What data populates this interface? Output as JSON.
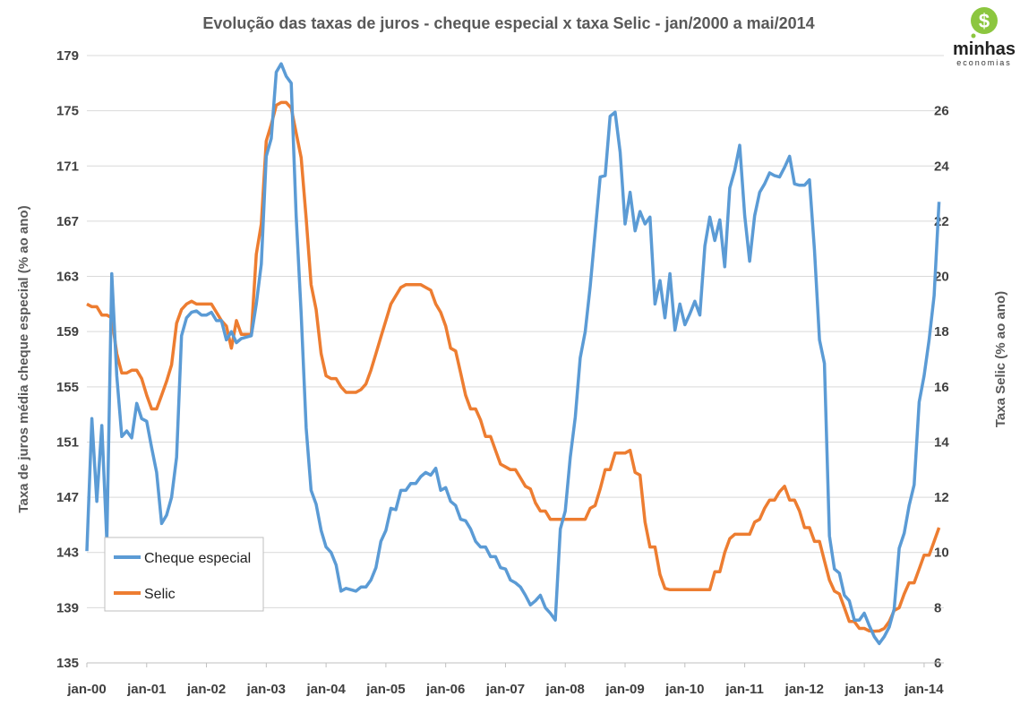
{
  "logo": {
    "line1": "minhas",
    "line2": "economias",
    "symbol": "$"
  },
  "chart_data": {
    "type": "line",
    "title": "Evolução das taxas de juros - cheque especial x taxa Selic - jan/2000 a mai/2014",
    "ylabel": "Taxa de juros média cheque especial (% ao ano)",
    "y2label": "Taxa Selic (% ao ano)",
    "x_unit": "months since jan-00",
    "xticks": [
      {
        "month": 0,
        "label": "jan-00"
      },
      {
        "month": 12,
        "label": "jan-01"
      },
      {
        "month": 24,
        "label": "jan-02"
      },
      {
        "month": 36,
        "label": "jan-03"
      },
      {
        "month": 48,
        "label": "jan-04"
      },
      {
        "month": 60,
        "label": "jan-05"
      },
      {
        "month": 72,
        "label": "jan-06"
      },
      {
        "month": 84,
        "label": "jan-07"
      },
      {
        "month": 96,
        "label": "jan-08"
      },
      {
        "month": 108,
        "label": "jan-09"
      },
      {
        "month": 120,
        "label": "jan-10"
      },
      {
        "month": 132,
        "label": "jan-11"
      },
      {
        "month": 144,
        "label": "jan-12"
      },
      {
        "month": 156,
        "label": "jan-13"
      },
      {
        "month": 168,
        "label": "jan-14"
      }
    ],
    "ylim": [
      135,
      179
    ],
    "yticks": [
      135,
      139,
      143,
      147,
      151,
      155,
      159,
      163,
      167,
      171,
      175,
      179
    ],
    "y2lim": [
      6,
      28
    ],
    "y2ticks": [
      6,
      8,
      10,
      12,
      14,
      16,
      18,
      20,
      22,
      24,
      26
    ],
    "grid": true,
    "legend_position": "bottom-left",
    "series": [
      {
        "name": "Cheque especial",
        "axis": "left",
        "color": "#5B9BD5",
        "values": [
          143.1,
          152.7,
          146.7,
          152.2,
          143.8,
          163.2,
          155.8,
          151.4,
          151.8,
          151.3,
          153.8,
          152.7,
          152.5,
          150.6,
          148.8,
          145.1,
          145.7,
          147.0,
          149.9,
          158.7,
          160.0,
          160.4,
          160.5,
          160.2,
          160.2,
          160.4,
          159.8,
          159.8,
          158.4,
          159.0,
          158.2,
          158.5,
          158.6,
          158.7,
          161.0,
          163.9,
          171.7,
          173.0,
          177.8,
          178.4,
          177.5,
          177.0,
          167.4,
          160.3,
          152.0,
          147.5,
          146.5,
          144.6,
          143.4,
          143.0,
          142.1,
          140.2,
          140.4,
          140.3,
          140.2,
          140.5,
          140.5,
          141.0,
          141.9,
          143.8,
          144.6,
          146.2,
          146.1,
          147.5,
          147.5,
          148.0,
          148.0,
          148.5,
          148.8,
          148.6,
          149.1,
          147.5,
          147.7,
          146.7,
          146.4,
          145.4,
          145.3,
          144.7,
          143.8,
          143.4,
          143.4,
          142.7,
          142.7,
          141.9,
          141.8,
          141.0,
          140.8,
          140.5,
          139.9,
          139.2,
          139.5,
          139.9,
          139.0,
          138.6,
          138.1,
          144.7,
          146.0,
          149.9,
          152.8,
          157.1,
          159.0,
          162.3,
          166.2,
          170.2,
          170.3,
          174.6,
          174.9,
          172.0,
          166.8,
          169.1,
          166.3,
          167.7,
          166.8,
          167.3,
          161.0,
          162.7,
          160.0,
          163.2,
          159.1,
          161.0,
          159.5,
          160.3,
          161.2,
          160.2,
          165.2,
          167.3,
          165.6,
          167.1,
          163.7,
          169.4,
          170.7,
          172.5,
          167.4,
          164.1,
          167.4,
          169.1,
          169.7,
          170.5,
          170.3,
          170.2,
          170.9,
          171.7,
          169.7,
          169.6,
          169.6,
          170.0,
          164.9,
          158.4,
          156.7,
          144.2,
          141.8,
          141.5,
          139.9,
          139.5,
          138.1,
          138.1,
          138.6,
          137.7,
          136.9,
          136.4,
          136.9,
          137.6,
          138.9,
          143.3,
          144.4,
          146.4,
          147.9,
          153.9,
          155.8,
          158.4,
          161.6,
          168.4
        ]
      },
      {
        "name": "Selic",
        "axis": "right",
        "color": "#ED7D31",
        "values": [
          19.0,
          18.9,
          18.9,
          18.6,
          18.6,
          18.5,
          17.2,
          16.5,
          16.5,
          16.6,
          16.6,
          16.3,
          15.7,
          15.2,
          15.2,
          15.7,
          16.2,
          16.8,
          18.3,
          18.8,
          19.0,
          19.1,
          19.0,
          19.0,
          19.0,
          19.0,
          18.7,
          18.4,
          18.2,
          17.4,
          18.4,
          17.9,
          17.9,
          17.9,
          20.8,
          21.9,
          24.9,
          25.5,
          26.2,
          26.3,
          26.3,
          26.1,
          25.2,
          24.3,
          22.1,
          19.7,
          18.8,
          17.2,
          16.4,
          16.3,
          16.3,
          16.0,
          15.8,
          15.8,
          15.8,
          15.9,
          16.1,
          16.6,
          17.2,
          17.8,
          18.4,
          19.0,
          19.3,
          19.6,
          19.7,
          19.7,
          19.7,
          19.7,
          19.6,
          19.5,
          19.0,
          18.7,
          18.2,
          17.4,
          17.3,
          16.5,
          15.7,
          15.2,
          15.2,
          14.8,
          14.2,
          14.2,
          13.7,
          13.2,
          13.1,
          13.0,
          13.0,
          12.7,
          12.4,
          12.3,
          11.8,
          11.5,
          11.5,
          11.2,
          11.2,
          11.2,
          11.2,
          11.2,
          11.2,
          11.2,
          11.2,
          11.6,
          11.7,
          12.3,
          13.0,
          13.0,
          13.6,
          13.6,
          13.6,
          13.7,
          12.9,
          12.8,
          11.1,
          10.2,
          10.2,
          9.2,
          8.7,
          8.65,
          8.65,
          8.65,
          8.65,
          8.65,
          8.65,
          8.65,
          8.65,
          8.65,
          9.3,
          9.3,
          10.0,
          10.5,
          10.66,
          10.66,
          10.66,
          10.66,
          11.1,
          11.2,
          11.6,
          11.9,
          11.9,
          12.2,
          12.4,
          11.9,
          11.9,
          11.5,
          10.9,
          10.9,
          10.4,
          10.4,
          9.7,
          9.0,
          8.6,
          8.5,
          8.0,
          7.5,
          7.5,
          7.25,
          7.25,
          7.16,
          7.15,
          7.16,
          7.25,
          7.5,
          7.9,
          8.0,
          8.5,
          8.9,
          8.9,
          9.4,
          9.9,
          9.9,
          10.4,
          10.9
        ]
      }
    ]
  }
}
